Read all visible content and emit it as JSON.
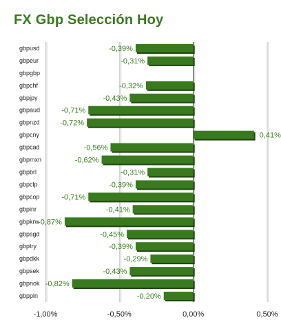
{
  "chart_data": {
    "type": "bar",
    "orientation": "horizontal",
    "title": "FX Gbp Selección Hoy",
    "categories": [
      "gbpusd",
      "gbpeur",
      "gbpgbp",
      "gbpchf",
      "gbpjpy",
      "gbpaud",
      "gbpnzd",
      "gbpcny",
      "gbpcad",
      "gbpmxn",
      "gbpbrl",
      "gbpclp",
      "gbpcop",
      "gbpinr",
      "gbpkrw",
      "gbpsgd",
      "gbptry",
      "gbpdkk",
      "gbpsek",
      "gbpnok",
      "gbppln"
    ],
    "values": [
      -0.39,
      -0.31,
      null,
      -0.32,
      -0.43,
      -0.71,
      -0.72,
      0.41,
      -0.56,
      -0.62,
      -0.31,
      -0.39,
      -0.71,
      -0.41,
      -0.87,
      -0.45,
      -0.39,
      -0.29,
      -0.43,
      -0.82,
      -0.2
    ],
    "value_labels": [
      "-0,39%",
      "-0,31%",
      "",
      "-0,32%",
      "-0,43%",
      "-0,71%",
      "-0,72%",
      "0,41%",
      "-0,56%",
      "-0,62%",
      "-0,31%",
      "-0,39%",
      "-0,71%",
      "-0,41%",
      "-0,87%",
      "-0,45%",
      "-0,39%",
      "-0,29%",
      "-0,43%",
      "-0,82%",
      "-0,20%"
    ],
    "xlim": [
      -1.0,
      0.5
    ],
    "xticks": [
      -1.0,
      -0.5,
      0.0,
      0.5
    ],
    "xtick_labels": [
      "-1,00%",
      "-0,50%",
      "0,00%",
      "0,50%"
    ],
    "grid": true,
    "bar_color": "#3a7a1e",
    "bar_shadow_color": "#1f4510"
  }
}
